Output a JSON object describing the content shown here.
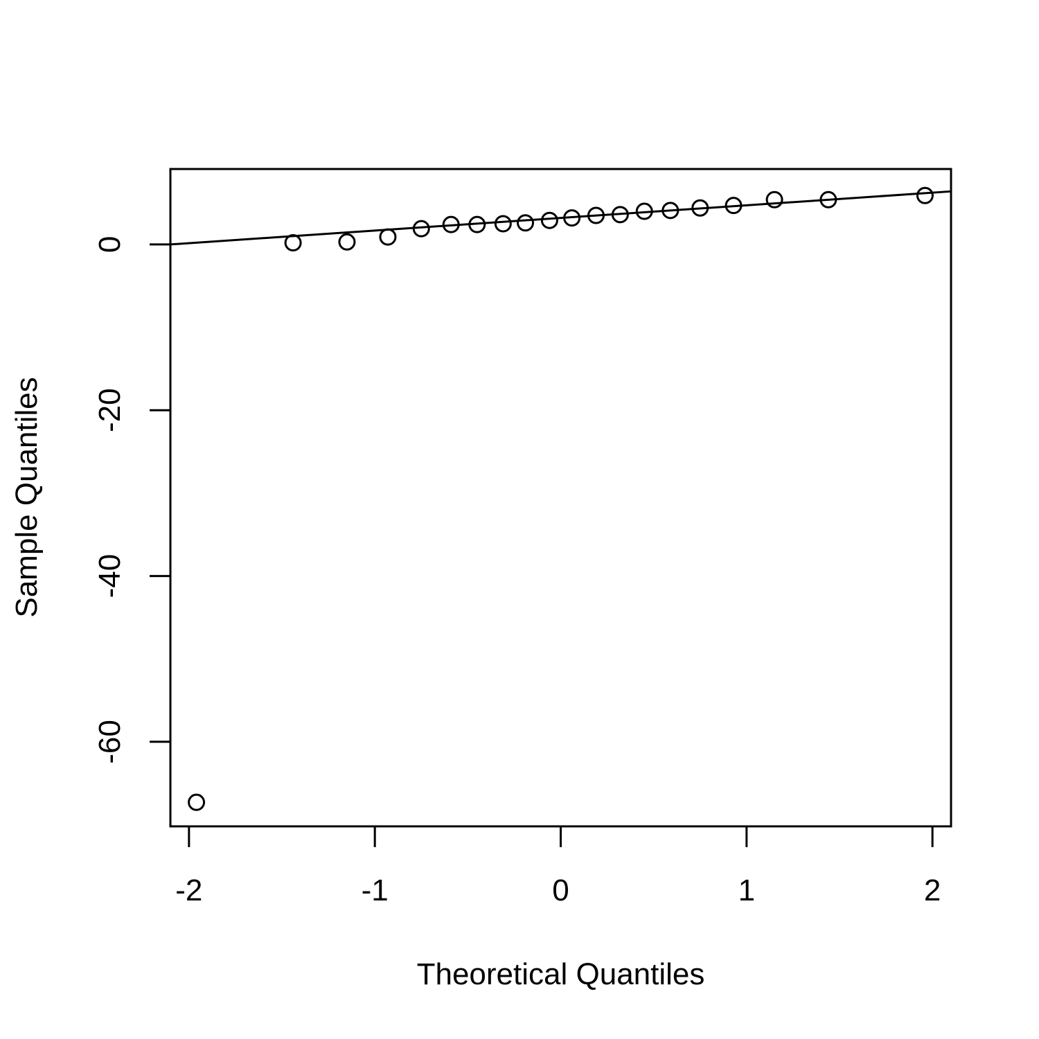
{
  "chart_data": {
    "type": "scatter",
    "xlabel": "Theoretical Quantiles",
    "ylabel": "Sample Quantiles",
    "xlim": [
      -2.1,
      2.1
    ],
    "ylim": [
      -70.2,
      9.1
    ],
    "x_ticks": [
      -2,
      -1,
      0,
      1,
      2
    ],
    "x_tick_labels": [
      "-2",
      "-1",
      "0",
      "1",
      "2"
    ],
    "y_ticks": [
      -60,
      -40,
      -20,
      0
    ],
    "y_tick_labels": [
      "-60",
      "-40",
      "-20",
      "0"
    ],
    "grid": false,
    "points": {
      "x": [
        -1.96,
        -1.44,
        -1.15,
        -0.93,
        -0.75,
        -0.59,
        -0.45,
        -0.31,
        -0.19,
        -0.06,
        0.06,
        0.19,
        0.32,
        0.45,
        0.59,
        0.75,
        0.93,
        1.15,
        1.44,
        1.96
      ],
      "y": [
        -67.3,
        0.2,
        0.3,
        0.9,
        1.9,
        2.4,
        2.4,
        2.5,
        2.6,
        2.9,
        3.2,
        3.5,
        3.6,
        4.0,
        4.1,
        4.4,
        4.7,
        5.4,
        5.4,
        5.9
      ]
    },
    "reference_line": {
      "x": [
        -2.1,
        2.1
      ],
      "y": [
        0.0,
        6.4
      ]
    }
  }
}
